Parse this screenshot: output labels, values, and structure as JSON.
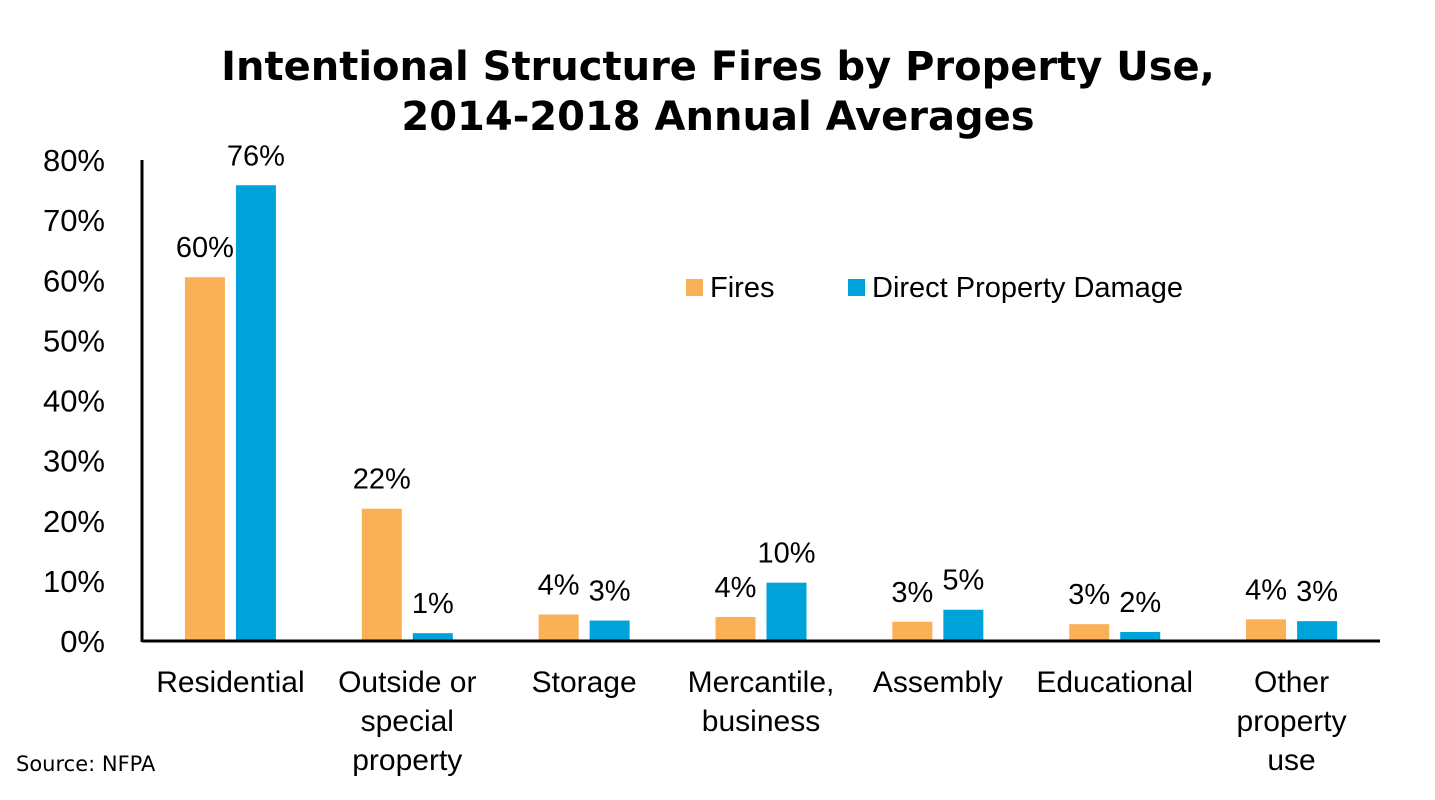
{
  "chart_data": {
    "type": "bar",
    "title": [
      "Intentional Structure Fires by Property Use,",
      "2014-2018 Annual Averages"
    ],
    "xlabel": "",
    "ylabel": "",
    "ylim": [
      0,
      80
    ],
    "yticks": [
      "0%",
      "10%",
      "20%",
      "30%",
      "40%",
      "50%",
      "60%",
      "70%",
      "80%"
    ],
    "grid": false,
    "legend_position": "upper-center-right",
    "categories": [
      [
        "Residential"
      ],
      [
        "Outside or",
        "special",
        "property"
      ],
      [
        "Storage"
      ],
      [
        "Mercantile,",
        "business"
      ],
      [
        "Assembly"
      ],
      [
        "Educational"
      ],
      [
        "Other",
        "property",
        "use"
      ]
    ],
    "series": [
      {
        "name": "Fires",
        "color": "#F9B057",
        "values": [
          60.5,
          22,
          4.4,
          4,
          3.2,
          2.8,
          3.6
        ],
        "labels": [
          "60%",
          "22%",
          "4%",
          "4%",
          "3%",
          "3%",
          "4%"
        ]
      },
      {
        "name": "Direct Property Damage",
        "color": "#00A3D9",
        "values": [
          75.8,
          1.3,
          3.4,
          9.7,
          5.2,
          1.5,
          3.3
        ],
        "labels": [
          "76%",
          "1%",
          "3%",
          "10%",
          "5%",
          "2%",
          "3%"
        ]
      }
    ]
  },
  "source": "Source: NFPA"
}
